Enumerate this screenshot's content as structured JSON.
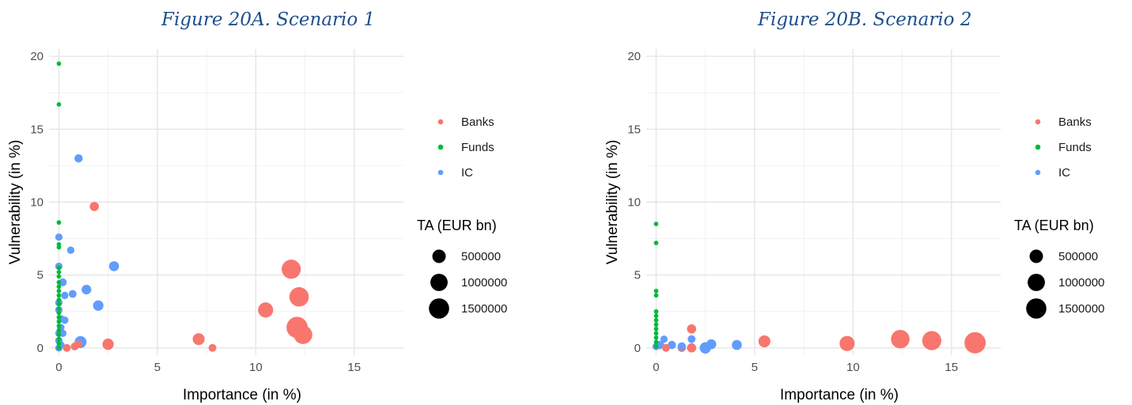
{
  "chart_data": [
    {
      "type": "scatter",
      "title": "Figure 20A. Scenario 1",
      "xlabel": "Importance (in %)",
      "ylabel": "Vulnerability (in %)",
      "xlim": [
        -0.5,
        17.5
      ],
      "ylim": [
        -0.5,
        20.5
      ],
      "xticks": [
        0,
        5,
        10,
        15
      ],
      "yticks": [
        0,
        5,
        10,
        15,
        20
      ],
      "grid": true,
      "legend_position": "right",
      "color_legend": [
        {
          "name": "Banks",
          "color": "#f8766d"
        },
        {
          "name": "Funds",
          "color": "#00ba38"
        },
        {
          "name": "IC",
          "color": "#619cff"
        }
      ],
      "size_legend": {
        "title": "TA (EUR bn)",
        "values": [
          500000,
          1000000,
          1500000
        ]
      },
      "series": [
        {
          "name": "Banks",
          "points": [
            {
              "x": 1.8,
              "y": 9.7,
              "ta": 150000
            },
            {
              "x": 11.8,
              "y": 5.4,
              "ta": 1300000
            },
            {
              "x": 12.2,
              "y": 3.5,
              "ta": 1350000
            },
            {
              "x": 10.5,
              "y": 2.6,
              "ta": 700000
            },
            {
              "x": 12.1,
              "y": 1.4,
              "ta": 1700000
            },
            {
              "x": 12.4,
              "y": 0.9,
              "ta": 1200000
            },
            {
              "x": 7.1,
              "y": 0.6,
              "ta": 350000
            },
            {
              "x": 2.5,
              "y": 0.25,
              "ta": 300000
            },
            {
              "x": 7.8,
              "y": 0.0,
              "ta": 80000
            },
            {
              "x": 0.8,
              "y": 0.1,
              "ta": 80000
            },
            {
              "x": 0.4,
              "y": 0.0,
              "ta": 80000
            },
            {
              "x": 1.0,
              "y": 0.25,
              "ta": 80000
            }
          ]
        },
        {
          "name": "Funds",
          "points": [
            {
              "x": 0,
              "y": 19.5,
              "ta": 1000
            },
            {
              "x": 0,
              "y": 16.7,
              "ta": 1000
            },
            {
              "x": 0,
              "y": 8.6,
              "ta": 1000
            },
            {
              "x": 0,
              "y": 7.1,
              "ta": 1000
            },
            {
              "x": 0,
              "y": 6.9,
              "ta": 1000
            },
            {
              "x": 0,
              "y": 5.5,
              "ta": 1000
            },
            {
              "x": 0,
              "y": 5.2,
              "ta": 1000
            },
            {
              "x": 0,
              "y": 4.9,
              "ta": 1000
            },
            {
              "x": 0,
              "y": 4.5,
              "ta": 1000
            },
            {
              "x": 0,
              "y": 4.2,
              "ta": 1000
            },
            {
              "x": 0,
              "y": 3.9,
              "ta": 1000
            },
            {
              "x": 0,
              "y": 3.6,
              "ta": 1000
            },
            {
              "x": 0,
              "y": 3.3,
              "ta": 1000
            },
            {
              "x": 0,
              "y": 3.0,
              "ta": 1000
            },
            {
              "x": 0,
              "y": 2.7,
              "ta": 1000
            },
            {
              "x": 0,
              "y": 2.4,
              "ta": 1000
            },
            {
              "x": 0,
              "y": 2.1,
              "ta": 1000
            },
            {
              "x": 0,
              "y": 1.8,
              "ta": 1000
            },
            {
              "x": 0,
              "y": 1.5,
              "ta": 1000
            },
            {
              "x": 0,
              "y": 1.2,
              "ta": 1000
            },
            {
              "x": 0,
              "y": 0.9,
              "ta": 1000
            },
            {
              "x": 0,
              "y": 0.6,
              "ta": 1000
            },
            {
              "x": 0,
              "y": 0.3,
              "ta": 1000
            },
            {
              "x": 0,
              "y": 0.0,
              "ta": 1000
            }
          ]
        },
        {
          "name": "IC",
          "points": [
            {
              "x": 1.0,
              "y": 13.0,
              "ta": 100000
            },
            {
              "x": 0,
              "y": 7.6,
              "ta": 60000
            },
            {
              "x": 0.6,
              "y": 6.7,
              "ta": 60000
            },
            {
              "x": 0,
              "y": 5.6,
              "ta": 60000
            },
            {
              "x": 2.8,
              "y": 5.6,
              "ta": 200000
            },
            {
              "x": 0.2,
              "y": 4.5,
              "ta": 80000
            },
            {
              "x": 1.4,
              "y": 4.0,
              "ta": 180000
            },
            {
              "x": 0.3,
              "y": 3.6,
              "ta": 60000
            },
            {
              "x": 0.7,
              "y": 3.7,
              "ta": 80000
            },
            {
              "x": 2.0,
              "y": 2.9,
              "ta": 230000
            },
            {
              "x": 0,
              "y": 3.1,
              "ta": 60000
            },
            {
              "x": 0,
              "y": 2.6,
              "ta": 60000
            },
            {
              "x": 0.1,
              "y": 2.0,
              "ta": 60000
            },
            {
              "x": 0.3,
              "y": 1.9,
              "ta": 60000
            },
            {
              "x": 0.1,
              "y": 1.4,
              "ta": 60000
            },
            {
              "x": 0,
              "y": 1.0,
              "ta": 60000
            },
            {
              "x": 0.2,
              "y": 1.0,
              "ta": 60000
            },
            {
              "x": 1.1,
              "y": 0.4,
              "ta": 350000
            },
            {
              "x": 0,
              "y": 0.5,
              "ta": 60000
            },
            {
              "x": 0.1,
              "y": 0.2,
              "ta": 60000
            },
            {
              "x": 0,
              "y": 0.0,
              "ta": 60000
            }
          ]
        }
      ]
    },
    {
      "type": "scatter",
      "title": "Figure 20B. Scenario 2",
      "xlabel": "Importance (in %)",
      "ylabel": "Vulnerability (in %)",
      "xlim": [
        -0.5,
        17.5
      ],
      "ylim": [
        -0.5,
        20.5
      ],
      "xticks": [
        0,
        5,
        10,
        15
      ],
      "yticks": [
        0,
        5,
        10,
        15,
        20
      ],
      "grid": true,
      "legend_position": "right",
      "color_legend": [
        {
          "name": "Banks",
          "color": "#f8766d"
        },
        {
          "name": "Funds",
          "color": "#00ba38"
        },
        {
          "name": "IC",
          "color": "#619cff"
        }
      ],
      "size_legend": {
        "title": "TA (EUR bn)",
        "values": [
          500000,
          1000000,
          1500000
        ]
      },
      "series": [
        {
          "name": "Banks",
          "points": [
            {
              "x": 1.8,
              "y": 1.3,
              "ta": 150000
            },
            {
              "x": 5.5,
              "y": 0.45,
              "ta": 350000
            },
            {
              "x": 9.7,
              "y": 0.3,
              "ta": 700000
            },
            {
              "x": 12.4,
              "y": 0.6,
              "ta": 1200000
            },
            {
              "x": 14.0,
              "y": 0.5,
              "ta": 1300000
            },
            {
              "x": 16.2,
              "y": 0.35,
              "ta": 1700000
            },
            {
              "x": 1.3,
              "y": 0.0,
              "ta": 100000
            },
            {
              "x": 1.8,
              "y": 0.0,
              "ta": 150000
            },
            {
              "x": 0.5,
              "y": 0.0,
              "ta": 80000
            }
          ]
        },
        {
          "name": "Funds",
          "points": [
            {
              "x": 0,
              "y": 8.5,
              "ta": 1000
            },
            {
              "x": 0,
              "y": 7.2,
              "ta": 1000
            },
            {
              "x": 0,
              "y": 3.9,
              "ta": 1000
            },
            {
              "x": 0,
              "y": 3.6,
              "ta": 1000
            },
            {
              "x": 0,
              "y": 2.5,
              "ta": 1000
            },
            {
              "x": 0,
              "y": 2.2,
              "ta": 1000
            },
            {
              "x": 0,
              "y": 1.9,
              "ta": 1000
            },
            {
              "x": 0,
              "y": 1.6,
              "ta": 1000
            },
            {
              "x": 0,
              "y": 1.3,
              "ta": 1000
            },
            {
              "x": 0,
              "y": 1.0,
              "ta": 1000
            },
            {
              "x": 0,
              "y": 0.7,
              "ta": 1000
            },
            {
              "x": 0,
              "y": 0.4,
              "ta": 1000
            },
            {
              "x": 0,
              "y": 0.1,
              "ta": 1000
            }
          ]
        },
        {
          "name": "IC",
          "points": [
            {
              "x": 1.8,
              "y": 0.6,
              "ta": 80000
            },
            {
              "x": 0.4,
              "y": 0.6,
              "ta": 60000
            },
            {
              "x": 0.2,
              "y": 0.2,
              "ta": 100000
            },
            {
              "x": 0.8,
              "y": 0.2,
              "ta": 100000
            },
            {
              "x": 1.3,
              "y": 0.1,
              "ta": 100000
            },
            {
              "x": 2.5,
              "y": 0.0,
              "ta": 300000
            },
            {
              "x": 2.8,
              "y": 0.25,
              "ta": 200000
            },
            {
              "x": 4.1,
              "y": 0.2,
              "ta": 200000
            },
            {
              "x": 0,
              "y": 0.1,
              "ta": 60000
            }
          ]
        }
      ]
    }
  ]
}
